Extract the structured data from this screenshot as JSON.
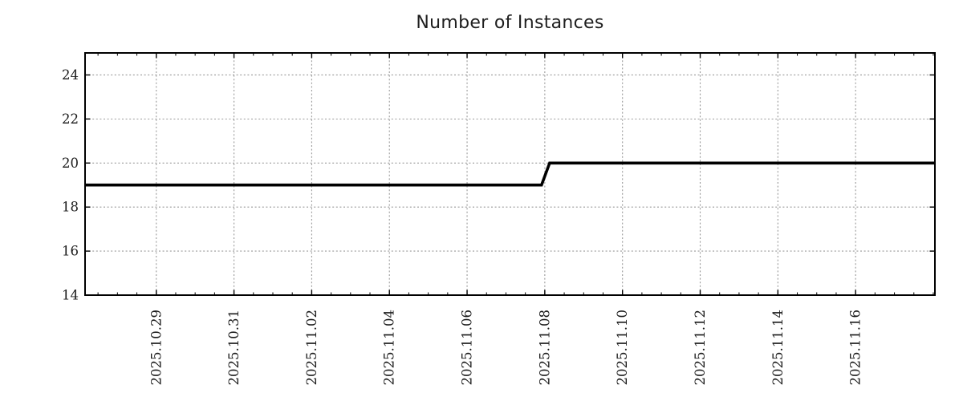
{
  "chart_data": {
    "type": "line",
    "title": "Number of Instances",
    "xlabel": "",
    "ylabel": "",
    "legend_position": "none",
    "grid": true,
    "x_axis": {
      "start": "2025-10-27 04:00",
      "end": "2025-11-18 01:00",
      "tick_labels": [
        "2025.10.29",
        "2025.10.31",
        "2025.11.02",
        "2025.11.04",
        "2025.11.06",
        "2025.11.08",
        "2025.11.10",
        "2025.11.12",
        "2025.11.14",
        "2025.11.16"
      ],
      "major_tick_days": 2,
      "minor_tick_hours": 12
    },
    "y_axis": {
      "ticks": [
        14,
        16,
        18,
        20,
        22,
        24
      ],
      "range": [
        14,
        25
      ]
    },
    "colors": {
      "line": "#000000",
      "grid": "#999999",
      "axis": "#000000",
      "text": "#1a1a1a",
      "background": "#ffffff"
    },
    "series": [
      {
        "points": [
          {
            "x": "2025-10-27 04:00",
            "y": 19
          },
          {
            "x": "2025-11-07 22:00",
            "y": 19
          },
          {
            "x": "2025-11-08 03:00",
            "y": 20
          },
          {
            "x": "2025-11-18 01:00",
            "y": 20
          }
        ]
      }
    ]
  }
}
